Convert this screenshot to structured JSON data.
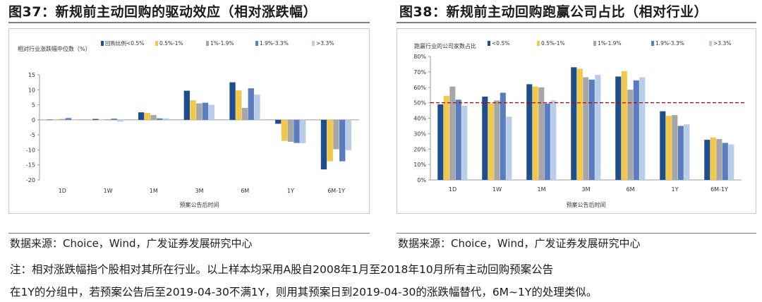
{
  "figures": [
    {
      "title": "图37：新规前主动回购的驱动效应（相对涨跌幅）"
    },
    {
      "title": "图38：新规前主动回购跑赢公司占比（相对行业）"
    }
  ],
  "sources": [
    "数据来源：Choice，Wind，广发证券发展研究中心",
    "数据来源：Choice，Wind，广发证券发展研究中心"
  ],
  "notes": [
    "注：相对涨跌幅指个股相对其所在行业。以上样本均采用A股自2008年1月至2018年10月所有主动回购预案公告",
    "在1Y的分组中，若预案公告后至2019-04-30不满1Y，则用其预案日到2019-04-30的涨跌幅替代，6M~1Y的处理类似。"
  ],
  "colors": [
    "#1f4e8c",
    "#f0c84a",
    "#a6a6a6",
    "#5a7dc0",
    "#b7cdea"
  ],
  "reference_line_color": "#c00000",
  "chart_data": [
    {
      "type": "bar",
      "ylabel": "相对行业涨跌幅中位数（%）",
      "xlabel": "预案公告后时间",
      "categories": [
        "1D",
        "1W",
        "1M",
        "3M",
        "6M",
        "1Y",
        "6M-1Y"
      ],
      "ylim": [
        -20,
        15
      ],
      "yticks": [
        15,
        10,
        5,
        0,
        -5,
        -10,
        -15,
        -20
      ],
      "series": [
        {
          "name": "回购比例<0.5%",
          "values": [
            0.1,
            0.3,
            2.5,
            9.7,
            12.5,
            -1.3,
            -16.5
          ]
        },
        {
          "name": "0.5%-1%",
          "values": [
            0.2,
            0.0,
            2.3,
            6.5,
            9.8,
            -7.0,
            -13.8
          ]
        },
        {
          "name": "1%-1.9%",
          "values": [
            0.3,
            0.2,
            1.6,
            5.5,
            4.0,
            -7.3,
            -9.8
          ]
        },
        {
          "name": "1.9%-3.3%",
          "values": [
            0.6,
            0.4,
            0.5,
            5.7,
            10.5,
            -7.7,
            -13.8
          ]
        },
        {
          "name": ">3.3%",
          "values": [
            0.0,
            -0.6,
            0.5,
            5.0,
            8.4,
            -7.8,
            -10.1
          ]
        }
      ]
    },
    {
      "type": "bar",
      "ylabel": "跑赢行业的公司家数占比",
      "xlabel": "预案公告后时间",
      "categories": [
        "1D",
        "1W",
        "1M",
        "3M",
        "6M",
        "1Y",
        "6M-1Y"
      ],
      "ylim": [
        0,
        80
      ],
      "yticks": [
        "80%",
        "70%",
        "60%",
        "50%",
        "40%",
        "30%",
        "20%",
        "10%",
        "0%"
      ],
      "reference_line": 50,
      "series": [
        {
          "name": "<0.5%",
          "values": [
            49,
            54,
            62,
            73,
            67,
            44.5,
            26
          ]
        },
        {
          "name": "0.5%-1%",
          "values": [
            54.5,
            49.5,
            60.5,
            72,
            70.5,
            41.5,
            27.5
          ]
        },
        {
          "name": "1%-1.9%",
          "values": [
            60.5,
            51.5,
            60,
            66.5,
            58.5,
            42,
            26.5
          ]
        },
        {
          "name": "1.9%-3.3%",
          "values": [
            52,
            56.5,
            49.5,
            65,
            64.5,
            35,
            24
          ]
        },
        {
          "name": ">3.3%",
          "values": [
            48,
            41,
            51.5,
            68,
            66.5,
            36,
            23
          ]
        }
      ]
    }
  ]
}
